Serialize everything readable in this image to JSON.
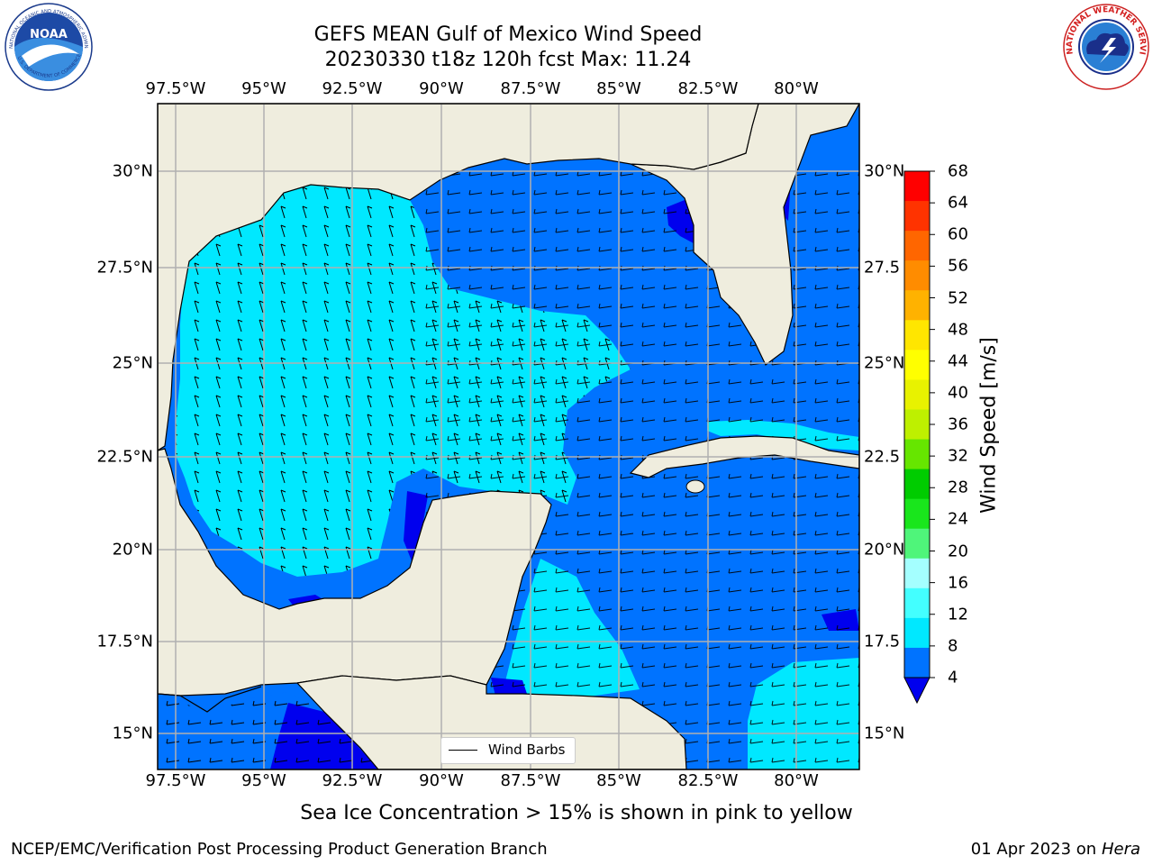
{
  "title_line1": "GEFS MEAN Gulf of Mexico Wind Speed",
  "title_line2": "20230330 t18z 120h fcst   Max: 11.24",
  "noaa_logo": {
    "name": "NOAA",
    "ring_text": "NATIONAL OCEANIC AND ATMOSPHERIC ADMINISTRATION",
    "bottom_text": "U.S. DEPARTMENT OF COMMERCE"
  },
  "nws_logo": {
    "ring_text": "NATIONAL WEATHER SERVICE"
  },
  "map": {
    "lon_ticks": [
      "97.5°W",
      "95°W",
      "92.5°W",
      "90°W",
      "87.5°W",
      "85°W",
      "82.5°W",
      "80°W"
    ],
    "lat_ticks_left": [
      "30°N",
      "27.5°N",
      "25°N",
      "22.5°N",
      "20°N",
      "17.5°N",
      "15°N"
    ],
    "lat_ticks_right": [
      "30°N",
      "27.5",
      "25°N",
      "22.5",
      "20°N",
      "17.5",
      "15°N"
    ],
    "land_color": "#efedde",
    "grid": true,
    "legend": {
      "label": "Wind Barbs",
      "placement": "lower-center"
    }
  },
  "colorbar": {
    "title": "Wind Speed [m/s]",
    "labels": [
      "4",
      "8",
      "12",
      "16",
      "20",
      "24",
      "28",
      "32",
      "36",
      "40",
      "44",
      "48",
      "52",
      "56",
      "60",
      "64",
      "68"
    ],
    "colors": [
      "#0073ff",
      "#00e8ff",
      "#43ffff",
      "#a4ffff",
      "#4ff57a",
      "#19e61c",
      "#00cc00",
      "#66e600",
      "#bef000",
      "#e8f200",
      "#ffff00",
      "#ffe600",
      "#ffb200",
      "#ff8c00",
      "#ff6600",
      "#ff3300",
      "#ff0000"
    ],
    "extend_low_color": "#0000ee"
  },
  "note": "Sea Ice Concentration > 15% is shown in pink to yellow",
  "footer_left": "NCEP/EMC/Verification Post Processing Product Generation Branch",
  "footer_right_date": "01 Apr 2023 on",
  "footer_right_machine": "Hera"
}
